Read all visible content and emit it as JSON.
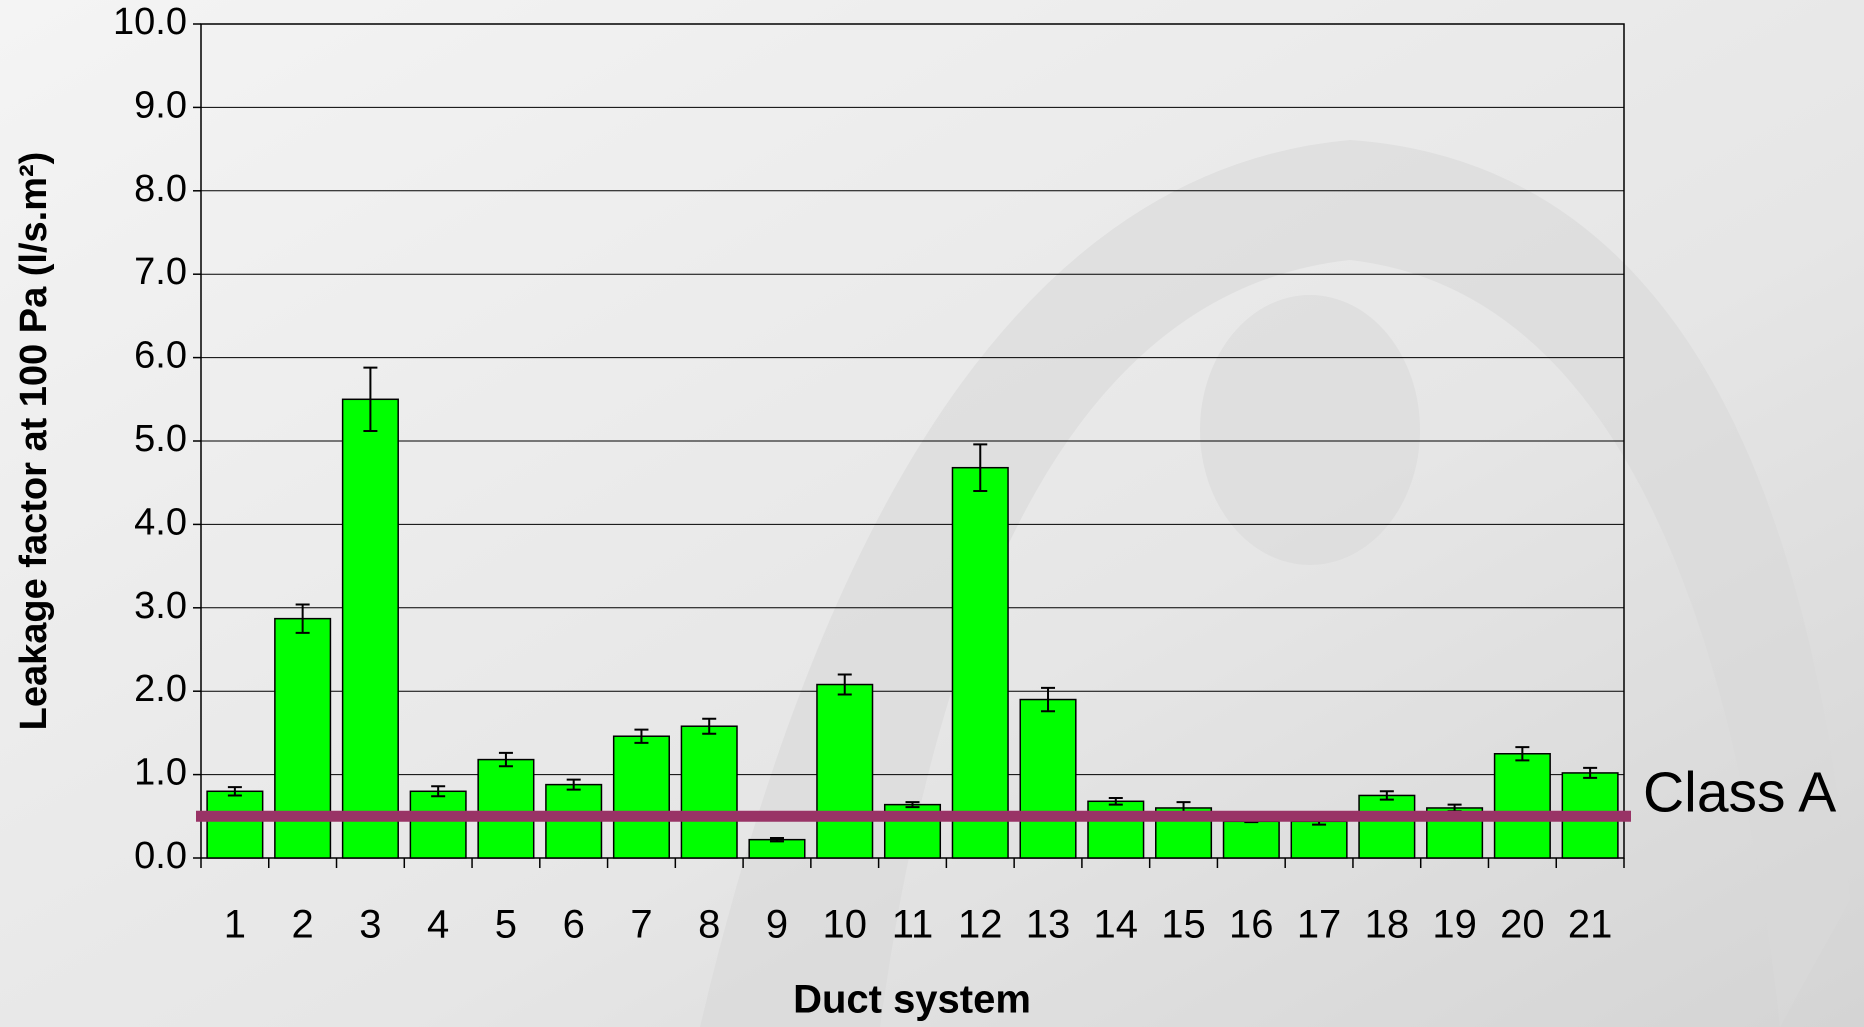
{
  "chart_data": {
    "type": "bar",
    "x_label": "Duct system",
    "y_label": "Leakage factor at 100 Pa (l/s.m²)",
    "categories": [
      "1",
      "2",
      "3",
      "4",
      "5",
      "6",
      "7",
      "8",
      "9",
      "10",
      "11",
      "12",
      "13",
      "14",
      "15",
      "16",
      "17",
      "18",
      "19",
      "20",
      "21"
    ],
    "values": [
      0.8,
      2.87,
      5.5,
      0.8,
      1.18,
      0.88,
      1.46,
      1.58,
      0.22,
      2.08,
      0.64,
      4.68,
      1.9,
      0.68,
      0.6,
      0.44,
      0.44,
      0.75,
      0.6,
      1.25,
      1.02
    ],
    "errors": [
      0.05,
      0.17,
      0.38,
      0.06,
      0.08,
      0.06,
      0.08,
      0.09,
      0.02,
      0.12,
      0.03,
      0.28,
      0.14,
      0.04,
      0.07,
      0.01,
      0.04,
      0.05,
      0.04,
      0.08,
      0.06
    ],
    "color": "#00ff00",
    "ylim": [
      0,
      10
    ],
    "yticks": [
      {
        "value": 0,
        "label": "0.0"
      },
      {
        "value": 1,
        "label": "1.0"
      },
      {
        "value": 2,
        "label": "2.0"
      },
      {
        "value": 3,
        "label": "3.0"
      },
      {
        "value": 4,
        "label": "4.0"
      },
      {
        "value": 5,
        "label": "5.0"
      },
      {
        "value": 6,
        "label": "6.0"
      },
      {
        "value": 7,
        "label": "7.0"
      },
      {
        "value": 8,
        "label": "8.0"
      },
      {
        "value": 9,
        "label": "9.0"
      },
      {
        "value": 10,
        "label": "10.0"
      }
    ],
    "grid": true,
    "reference_lines": [
      {
        "value": 0.5,
        "label": "Class A",
        "color": "#993366"
      }
    ]
  }
}
